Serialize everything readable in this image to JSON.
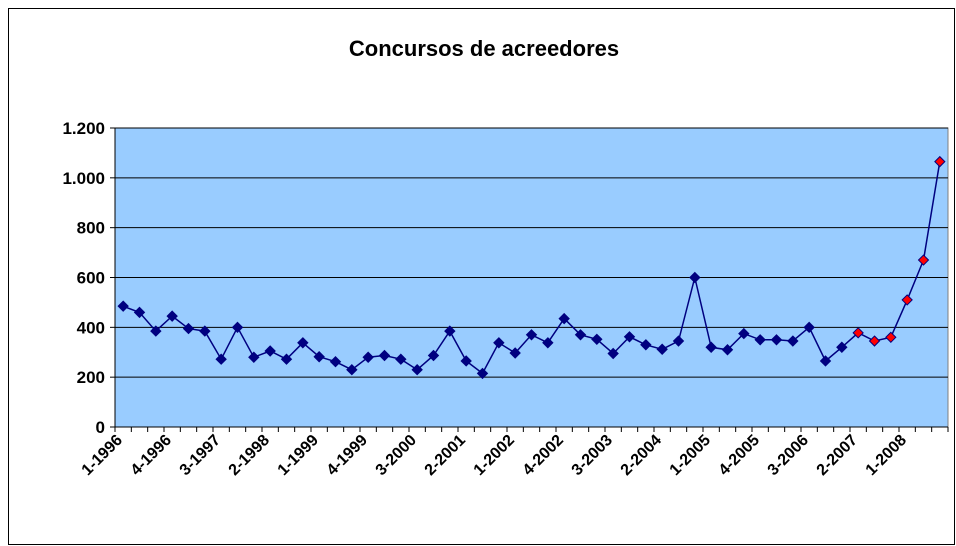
{
  "chart_data": {
    "type": "line",
    "title": "Concursos de acreedores",
    "categories": [
      "1-1996",
      null,
      null,
      "4-1996",
      null,
      null,
      "3-1997",
      null,
      null,
      "2-1998",
      null,
      null,
      "1-1999",
      null,
      null,
      "4-1999",
      null,
      null,
      "3-2000",
      null,
      null,
      "2-2001",
      null,
      null,
      "1-2002",
      null,
      null,
      "4-2002",
      null,
      null,
      "3-2003",
      null,
      null,
      "2-2004",
      null,
      null,
      "1-2005",
      null,
      null,
      "4-2005",
      null,
      null,
      "3-2006",
      null,
      null,
      "2-2007",
      null,
      null,
      "1-2008",
      null,
      null
    ],
    "series": [
      {
        "color": "#000080",
        "marker_color": "#000080",
        "values": [
          485,
          460,
          385,
          445,
          395,
          385,
          272,
          400,
          280,
          305,
          272,
          338,
          282,
          262,
          230,
          280,
          287,
          272,
          230,
          287,
          385,
          265,
          215,
          338,
          297,
          370,
          338,
          435,
          370,
          352,
          295,
          362,
          330,
          312,
          345,
          600,
          320,
          310,
          375,
          350,
          350,
          345,
          400,
          265,
          320,
          378,
          345,
          360,
          510,
          670,
          1065
        ],
        "highlight": {
          "start": 45,
          "color": "#ff0000"
        }
      }
    ],
    "ylim": [
      0,
      1200
    ],
    "yticks": [
      0,
      200,
      400,
      600,
      800,
      {
        "value": 1000,
        "label": "1.000"
      },
      {
        "value": 1200,
        "label": "1.200"
      }
    ],
    "grid": true,
    "plot_background": "#99ccff"
  }
}
